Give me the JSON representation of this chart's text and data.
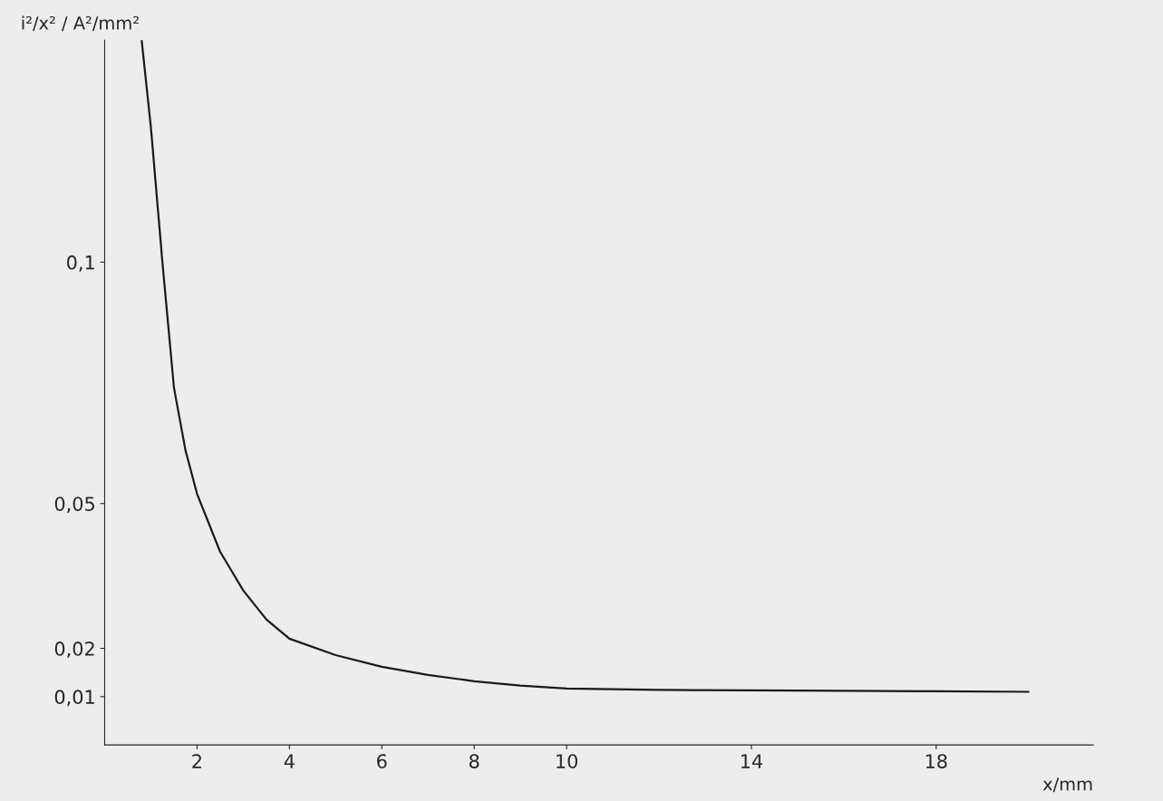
{
  "chart_data": {
    "type": "line",
    "xlabel": "x/mm",
    "ylabel": "i²/x² / A²/mm²",
    "x": [
      0.8,
      1.0,
      1.25,
      1.5,
      1.75,
      2,
      2.5,
      3,
      3.5,
      4,
      5,
      6,
      7,
      8,
      9,
      10,
      12,
      14,
      16,
      18,
      20
    ],
    "series": [
      {
        "color": "#1a1a1a",
        "values": [
          0.146,
          0.128,
          0.1,
          0.074,
          0.061,
          0.052,
          0.04,
          0.032,
          0.026,
          0.022,
          0.0186,
          0.0162,
          0.0145,
          0.0132,
          0.0123,
          0.0117,
          0.0114,
          0.0113,
          0.0112,
          0.0111,
          0.011
        ]
      }
    ],
    "xlim": [
      0,
      21.4
    ],
    "ylim": [
      0,
      0.146
    ],
    "xticks": [
      2,
      4,
      6,
      8,
      10,
      14,
      18
    ],
    "yticks": [
      {
        "value": 0.01,
        "label": "0,01"
      },
      {
        "value": 0.02,
        "label": "0,02"
      },
      {
        "value": 0.05,
        "label": "0,05"
      },
      {
        "value": 0.1,
        "label": "0,1"
      }
    ],
    "grid": false,
    "legend": false
  }
}
